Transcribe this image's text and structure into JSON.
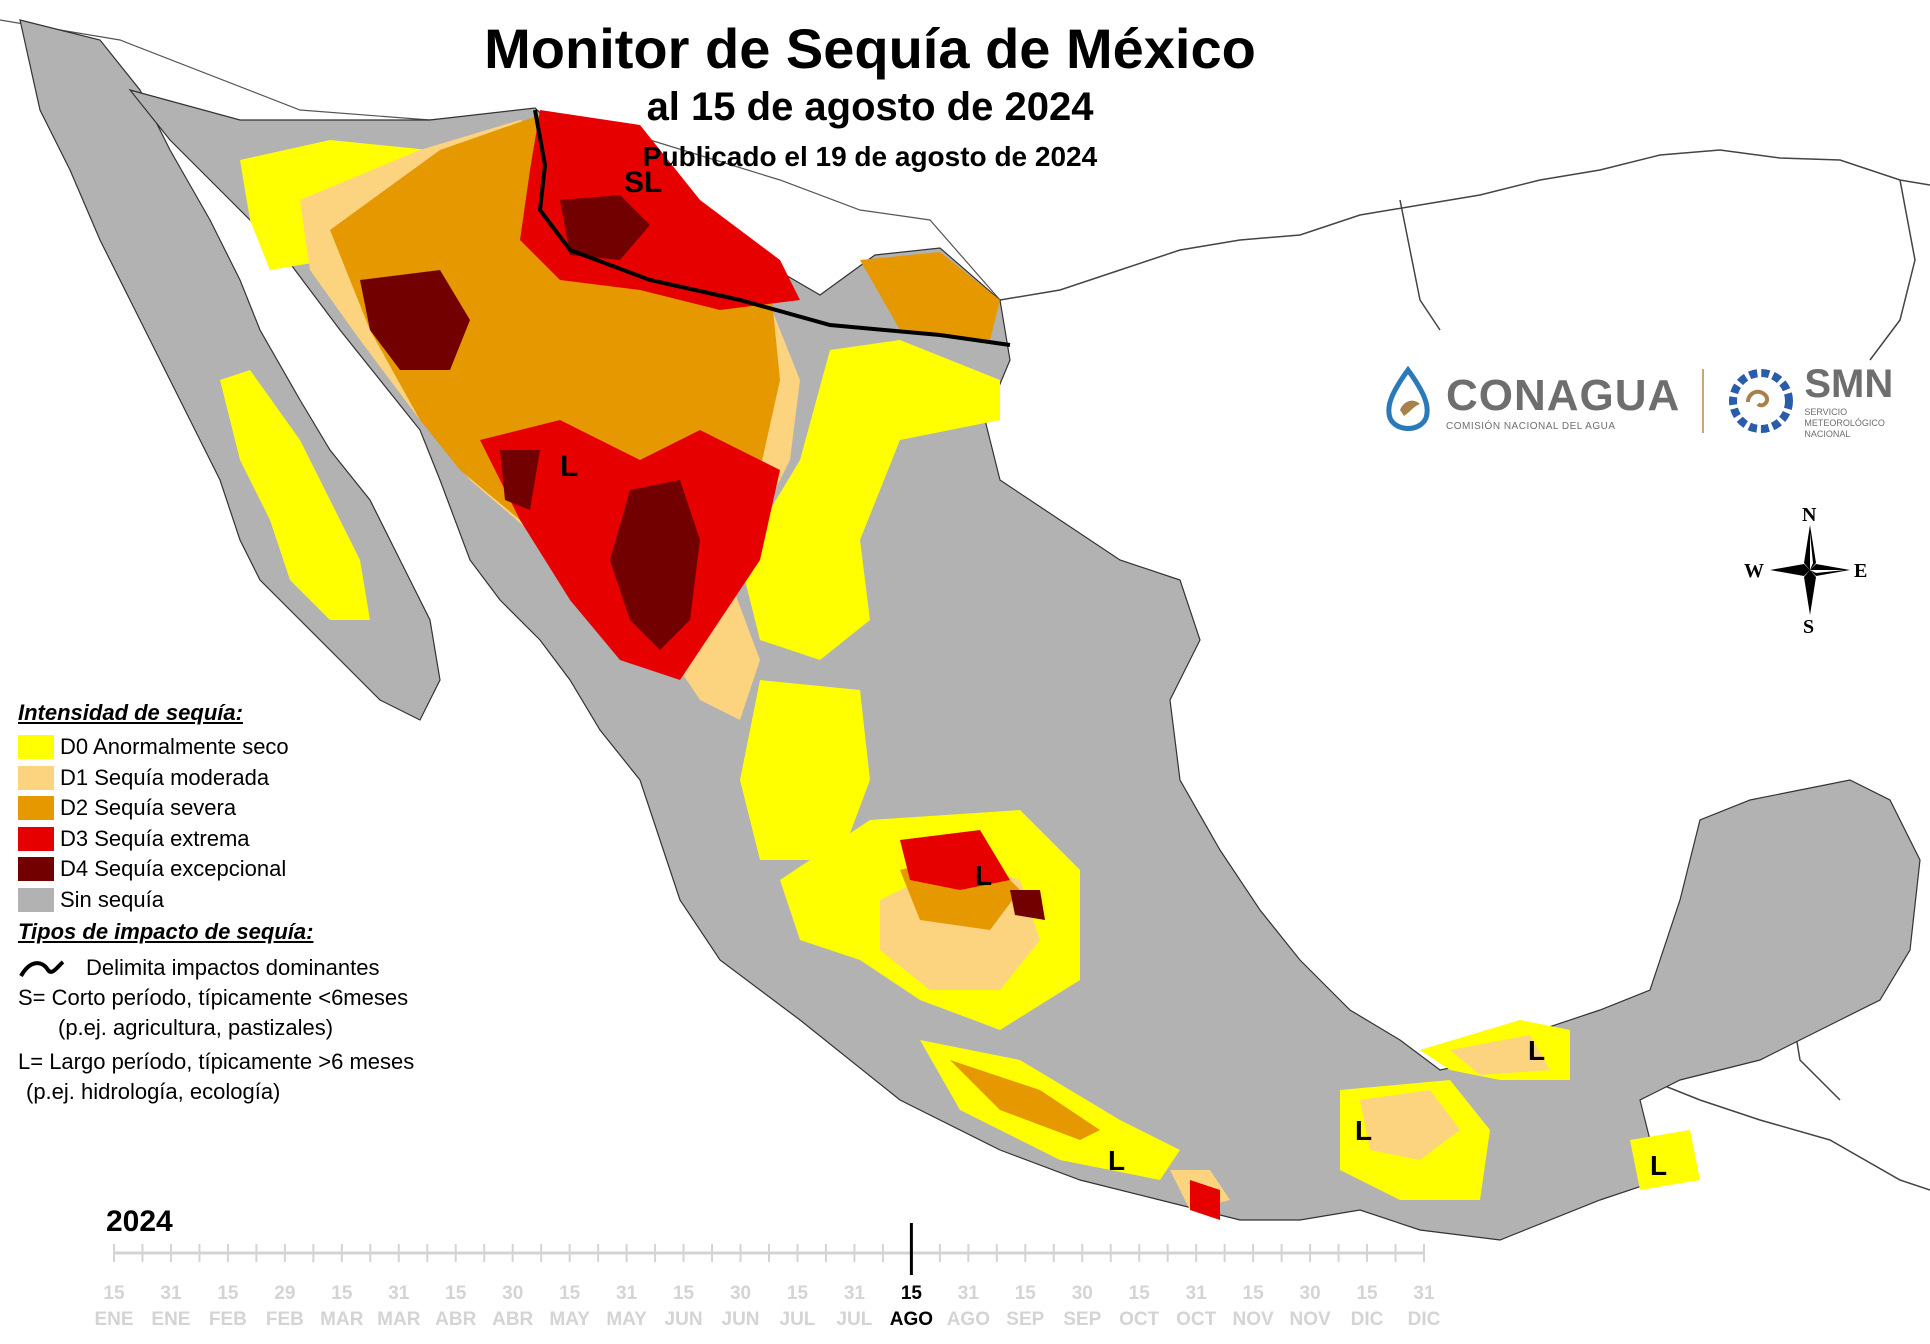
{
  "title": "Monitor de Sequía de México",
  "subtitle": "al 15 de agosto de 2024",
  "published": "Publicado el 19 de agosto de 2024",
  "legend": {
    "heading": "Intensidad de sequía:",
    "items": [
      {
        "label": "D0 Anormalmente seco",
        "color": "#ffff00"
      },
      {
        "label": "D1 Sequía moderada",
        "color": "#fcd37f"
      },
      {
        "label": "D2 Sequía severa",
        "color": "#e69800"
      },
      {
        "label": "D3 Sequía extrema",
        "color": "#e60000"
      },
      {
        "label": "D4 Sequía excepcional",
        "color": "#730000"
      },
      {
        "label": "Sin sequía",
        "color": "#b2b2b2"
      }
    ]
  },
  "impact": {
    "heading": "Tipos de impacto de sequía:",
    "line_label": "Delimita impactos dominantes",
    "s_line1": "S= Corto período, típicamente <6meses",
    "s_line2": "(p.ej. agricultura, pastizales)",
    "l_line1": "L= Largo período, típicamente >6 meses",
    "l_line2": "(p.ej. hidrología, ecología)"
  },
  "map_labels": [
    "SL",
    "L",
    "L",
    "L",
    "L",
    "L",
    "L"
  ],
  "logos": {
    "conagua": "CONAGUA",
    "conagua_sub": "COMISIÓN NACIONAL DEL AGUA",
    "smn": "SMN",
    "smn_sub1": "SERVICIO",
    "smn_sub2": "METEOROLÓGICO",
    "smn_sub3": "NACIONAL"
  },
  "compass": {
    "n": "N",
    "s": "S",
    "e": "E",
    "w": "W"
  },
  "timeline": {
    "year": "2024",
    "ticks": [
      {
        "day": "15",
        "month": "ENE"
      },
      {
        "day": "31",
        "month": "ENE"
      },
      {
        "day": "15",
        "month": "FEB"
      },
      {
        "day": "29",
        "month": "FEB"
      },
      {
        "day": "15",
        "month": "MAR"
      },
      {
        "day": "31",
        "month": "MAR"
      },
      {
        "day": "15",
        "month": "ABR"
      },
      {
        "day": "30",
        "month": "ABR"
      },
      {
        "day": "15",
        "month": "MAY"
      },
      {
        "day": "31",
        "month": "MAY"
      },
      {
        "day": "15",
        "month": "JUN"
      },
      {
        "day": "30",
        "month": "JUN"
      },
      {
        "day": "15",
        "month": "JUL"
      },
      {
        "day": "31",
        "month": "JUL"
      },
      {
        "day": "15",
        "month": "AGO"
      },
      {
        "day": "31",
        "month": "AGO"
      },
      {
        "day": "15",
        "month": "SEP"
      },
      {
        "day": "30",
        "month": "SEP"
      },
      {
        "day": "15",
        "month": "OCT"
      },
      {
        "day": "31",
        "month": "OCT"
      },
      {
        "day": "15",
        "month": "NOV"
      },
      {
        "day": "30",
        "month": "NOV"
      },
      {
        "day": "15",
        "month": "DIC"
      },
      {
        "day": "31",
        "month": "DIC"
      }
    ],
    "current_index": 14,
    "active_color": "#000000",
    "inactive_color": "#d4d4d4"
  }
}
